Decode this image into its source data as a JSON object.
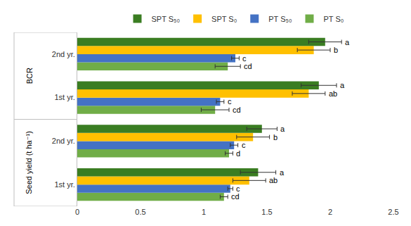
{
  "chart_data": {
    "type": "bar",
    "orientation": "horizontal",
    "categories": [
      "1st yr.",
      "2nd yr.",
      "1st yr.",
      "2nd yr."
    ],
    "groups": [
      "Seed yield (t ha⁻¹)",
      "Seed yield (t ha⁻¹)",
      "BCR",
      "BCR"
    ],
    "series": [
      {
        "name": "SPT S₅₀",
        "color": "#3a7d22",
        "values": [
          1.43,
          1.46,
          1.91,
          1.96
        ],
        "error": [
          0.14,
          0.12,
          0.14,
          0.13
        ],
        "letters": [
          "a",
          "a",
          "a",
          "a"
        ]
      },
      {
        "name": "SPT S₀",
        "color": "#ffc000",
        "values": [
          1.36,
          1.39,
          1.83,
          1.87
        ],
        "error": [
          0.13,
          0.13,
          0.13,
          0.13
        ],
        "letters": [
          "ab",
          "b",
          "ab",
          "b"
        ]
      },
      {
        "name": "PT S₅₀",
        "color": "#4472c4",
        "values": [
          1.21,
          1.24,
          1.13,
          1.25
        ],
        "error": [
          0.02,
          0.03,
          0.03,
          0.03
        ],
        "letters": [
          "c",
          "c",
          "c",
          "c"
        ]
      },
      {
        "name": "PT S₀",
        "color": "#70ad47",
        "values": [
          1.16,
          1.2,
          1.09,
          1.19
        ],
        "error": [
          0.03,
          0.03,
          0.11,
          0.1
        ],
        "letters": [
          "cd",
          "d",
          "cd",
          "cd"
        ]
      }
    ],
    "xlim": [
      0,
      2.5
    ],
    "xticks": [
      0,
      0.5,
      1,
      1.5,
      2,
      2.5
    ],
    "grid": false,
    "legend": "top"
  }
}
